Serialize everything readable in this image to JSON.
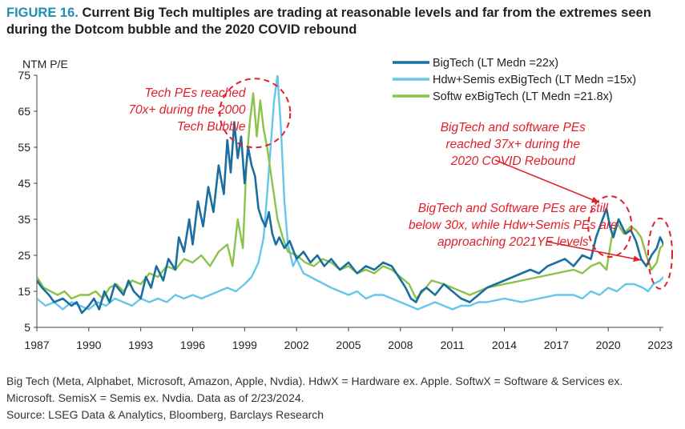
{
  "figure": {
    "label": "FIGURE 16.",
    "title": "Current Big Tech multiples are trading at reasonable levels and far from the extremes seen during the Dotcom bubble and the 2020 COVID rebound"
  },
  "notes": [
    "Big Tech (Meta, Alphabet, Microsoft, Amazon, Apple, Nvdia). HdwX = Hardware ex. Apple. SoftwX = Software & Services ex.",
    "Microsoft. SemisX = Semis ex. Nvdia. Data as of 2/23/2024.",
    "Source: LSEG Data & Analytics, Bloomberg, Barclays Research"
  ],
  "chart_data": {
    "type": "line",
    "ylabel": "NTM P/E",
    "ylim": [
      5,
      75
    ],
    "yticks": [
      5,
      15,
      25,
      35,
      45,
      55,
      65,
      75
    ],
    "xlim": [
      1987,
      2023.4
    ],
    "xticks": [
      1987,
      1990,
      1993,
      1996,
      1999,
      2002,
      2005,
      2008,
      2011,
      2014,
      2017,
      2020,
      2023
    ],
    "legend_position": "top-right",
    "grid": false,
    "series": [
      {
        "name": "BigTech  (LT Medn =22x)",
        "color": "#1a6fa0",
        "x": [
          1987.0,
          1987.3,
          1987.7,
          1988.0,
          1988.5,
          1989.0,
          1989.3,
          1989.6,
          1990.0,
          1990.3,
          1990.6,
          1990.9,
          1991.2,
          1991.5,
          1992.0,
          1992.3,
          1992.6,
          1993.0,
          1993.3,
          1993.6,
          1993.9,
          1994.3,
          1994.6,
          1995.0,
          1995.2,
          1995.5,
          1995.8,
          1996.0,
          1996.3,
          1996.6,
          1996.9,
          1997.2,
          1997.5,
          1997.8,
          1998.0,
          1998.2,
          1998.4,
          1998.6,
          1998.8,
          1999.0,
          1999.2,
          1999.4,
          1999.6,
          1999.8,
          2000.0,
          2000.2,
          2000.4,
          2000.6,
          2000.8,
          2001.0,
          2001.3,
          2001.6,
          2002.0,
          2002.4,
          2002.8,
          2003.2,
          2003.6,
          2004.0,
          2004.5,
          2005.0,
          2005.5,
          2006.0,
          2006.5,
          2007.0,
          2007.5,
          2007.9,
          2008.3,
          2008.6,
          2008.9,
          2009.2,
          2009.5,
          2010.0,
          2010.5,
          2011.0,
          2011.5,
          2012.0,
          2012.5,
          2013.0,
          2013.5,
          2014.0,
          2014.5,
          2015.0,
          2015.5,
          2016.0,
          2016.5,
          2017.0,
          2017.5,
          2018.0,
          2018.5,
          2019.0,
          2019.3,
          2019.6,
          2019.9,
          2020.1,
          2020.3,
          2020.6,
          2021.0,
          2021.3,
          2021.6,
          2021.9,
          2022.2,
          2022.5,
          2022.8,
          2023.0,
          2023.2,
          2023.4
        ],
        "values": [
          18,
          16,
          14,
          12,
          13,
          11,
          12,
          9,
          11,
          13,
          10,
          15,
          12,
          17,
          14,
          18,
          15,
          13,
          19,
          16,
          22,
          18,
          24,
          21,
          30,
          26,
          35,
          28,
          40,
          33,
          44,
          37,
          50,
          42,
          57,
          48,
          62,
          52,
          58,
          45,
          55,
          50,
          47,
          38,
          35,
          33,
          37,
          31,
          28,
          30,
          27,
          29,
          24,
          26,
          23,
          25,
          22,
          24,
          21,
          23,
          20,
          22,
          21,
          23,
          22,
          19,
          16,
          13,
          12,
          15,
          16,
          14,
          17,
          15,
          13,
          12,
          14,
          16,
          17,
          18,
          19,
          20,
          21,
          20,
          22,
          23,
          24,
          22,
          25,
          24,
          30,
          34,
          38,
          33,
          30,
          35,
          31,
          32,
          29,
          24,
          22,
          25,
          27,
          30,
          28,
          28
        ]
      },
      {
        "name": "Hdw+Semis exBigTech  (LT Medn =15x)",
        "color": "#66c6ea",
        "x": [
          1987.0,
          1987.5,
          1988.0,
          1988.5,
          1989.0,
          1989.5,
          1990.0,
          1990.5,
          1991.0,
          1991.5,
          1992.0,
          1992.5,
          1993.0,
          1993.5,
          1994.0,
          1994.5,
          1995.0,
          1995.5,
          1996.0,
          1996.5,
          1997.0,
          1997.5,
          1998.0,
          1998.5,
          1999.0,
          1999.4,
          1999.8,
          2000.1,
          2000.3,
          2000.5,
          2000.7,
          2000.9,
          2001.1,
          2001.3,
          2001.5,
          2001.8,
          2002.0,
          2002.4,
          2002.8,
          2003.2,
          2003.6,
          2004.0,
          2004.5,
          2005.0,
          2005.5,
          2006.0,
          2006.5,
          2007.0,
          2007.5,
          2008.0,
          2008.5,
          2009.0,
          2009.5,
          2010.0,
          2010.5,
          2011.0,
          2011.5,
          2012.0,
          2012.5,
          2013.0,
          2014.0,
          2015.0,
          2016.0,
          2017.0,
          2018.0,
          2018.5,
          2019.0,
          2019.5,
          2020.0,
          2020.5,
          2021.0,
          2021.5,
          2022.0,
          2022.3,
          2022.6,
          2023.0,
          2023.4
        ],
        "values": [
          13,
          11,
          12,
          10,
          12,
          11,
          10,
          12,
          11,
          13,
          12,
          11,
          13,
          12,
          13,
          12,
          14,
          13,
          14,
          13,
          14,
          15,
          16,
          15,
          17,
          19,
          23,
          30,
          42,
          55,
          68,
          75,
          60,
          40,
          28,
          22,
          24,
          20,
          19,
          18,
          17,
          16,
          15,
          14,
          15,
          13,
          14,
          14,
          13,
          12,
          11,
          10,
          11,
          12,
          11,
          10,
          11,
          11,
          12,
          12,
          13,
          12,
          13,
          14,
          14,
          13,
          15,
          14,
          16,
          15,
          17,
          17,
          16,
          15,
          17,
          18,
          20
        ]
      },
      {
        "name": "Softw exBigTech  (LT Medn =21.8x)",
        "color": "#8bc34a",
        "x": [
          1987.0,
          1987.4,
          1987.8,
          1988.2,
          1988.6,
          1989.0,
          1989.5,
          1990.0,
          1990.4,
          1990.8,
          1991.2,
          1991.6,
          1992.0,
          1992.5,
          1993.0,
          1993.5,
          1994.0,
          1994.5,
          1995.0,
          1995.5,
          1996.0,
          1996.5,
          1997.0,
          1997.5,
          1998.0,
          1998.3,
          1998.6,
          1998.9,
          1999.1,
          1999.3,
          1999.5,
          1999.7,
          1999.9,
          2000.1,
          2000.3,
          2000.6,
          2000.9,
          2001.2,
          2001.5,
          2002.0,
          2002.5,
          2003.0,
          2003.5,
          2004.0,
          2004.5,
          2005.0,
          2005.5,
          2006.0,
          2006.5,
          2007.0,
          2007.5,
          2008.0,
          2008.5,
          2008.9,
          2009.3,
          2009.8,
          2010.5,
          2011.0,
          2011.5,
          2012.0,
          2012.5,
          2013.0,
          2014.0,
          2015.0,
          2016.0,
          2017.0,
          2018.0,
          2018.5,
          2019.0,
          2019.5,
          2019.9,
          2020.2,
          2020.5,
          2020.9,
          2021.3,
          2021.6,
          2021.9,
          2022.2,
          2022.5,
          2022.8,
          2023.0,
          2023.2,
          2023.4
        ],
        "values": [
          19,
          16,
          15,
          14,
          15,
          13,
          14,
          14,
          15,
          13,
          16,
          17,
          15,
          18,
          17,
          20,
          19,
          22,
          21,
          24,
          23,
          25,
          22,
          26,
          28,
          22,
          35,
          27,
          50,
          62,
          70,
          58,
          68,
          60,
          55,
          45,
          35,
          30,
          26,
          25,
          23,
          22,
          24,
          23,
          21,
          22,
          20,
          21,
          20,
          22,
          21,
          19,
          17,
          13,
          15,
          18,
          17,
          16,
          15,
          14,
          15,
          16,
          17,
          18,
          19,
          20,
          21,
          20,
          22,
          23,
          21,
          30,
          34,
          31,
          33,
          32,
          30,
          25,
          21,
          23,
          27,
          28,
          30
        ]
      }
    ],
    "annotations": [
      {
        "lines": [
          "Tech PEs reached",
          "70x+ during the 2000",
          "Tech Bubble"
        ],
        "x": 1998.5,
        "y": 69,
        "align": "right"
      },
      {
        "lines": [
          "BigTech and software PEs",
          "reached 37x+ during the",
          "2020 COVID Rebound"
        ],
        "x": 2014.5,
        "y": 59.5,
        "align": "middle"
      },
      {
        "lines": [
          "BigTech and Software PEs are still",
          "below 30x, while Hdw+Semis PEs are",
          "approaching 2021YE levels"
        ],
        "x": 2014.5,
        "y": 37,
        "align": "middle"
      }
    ]
  }
}
